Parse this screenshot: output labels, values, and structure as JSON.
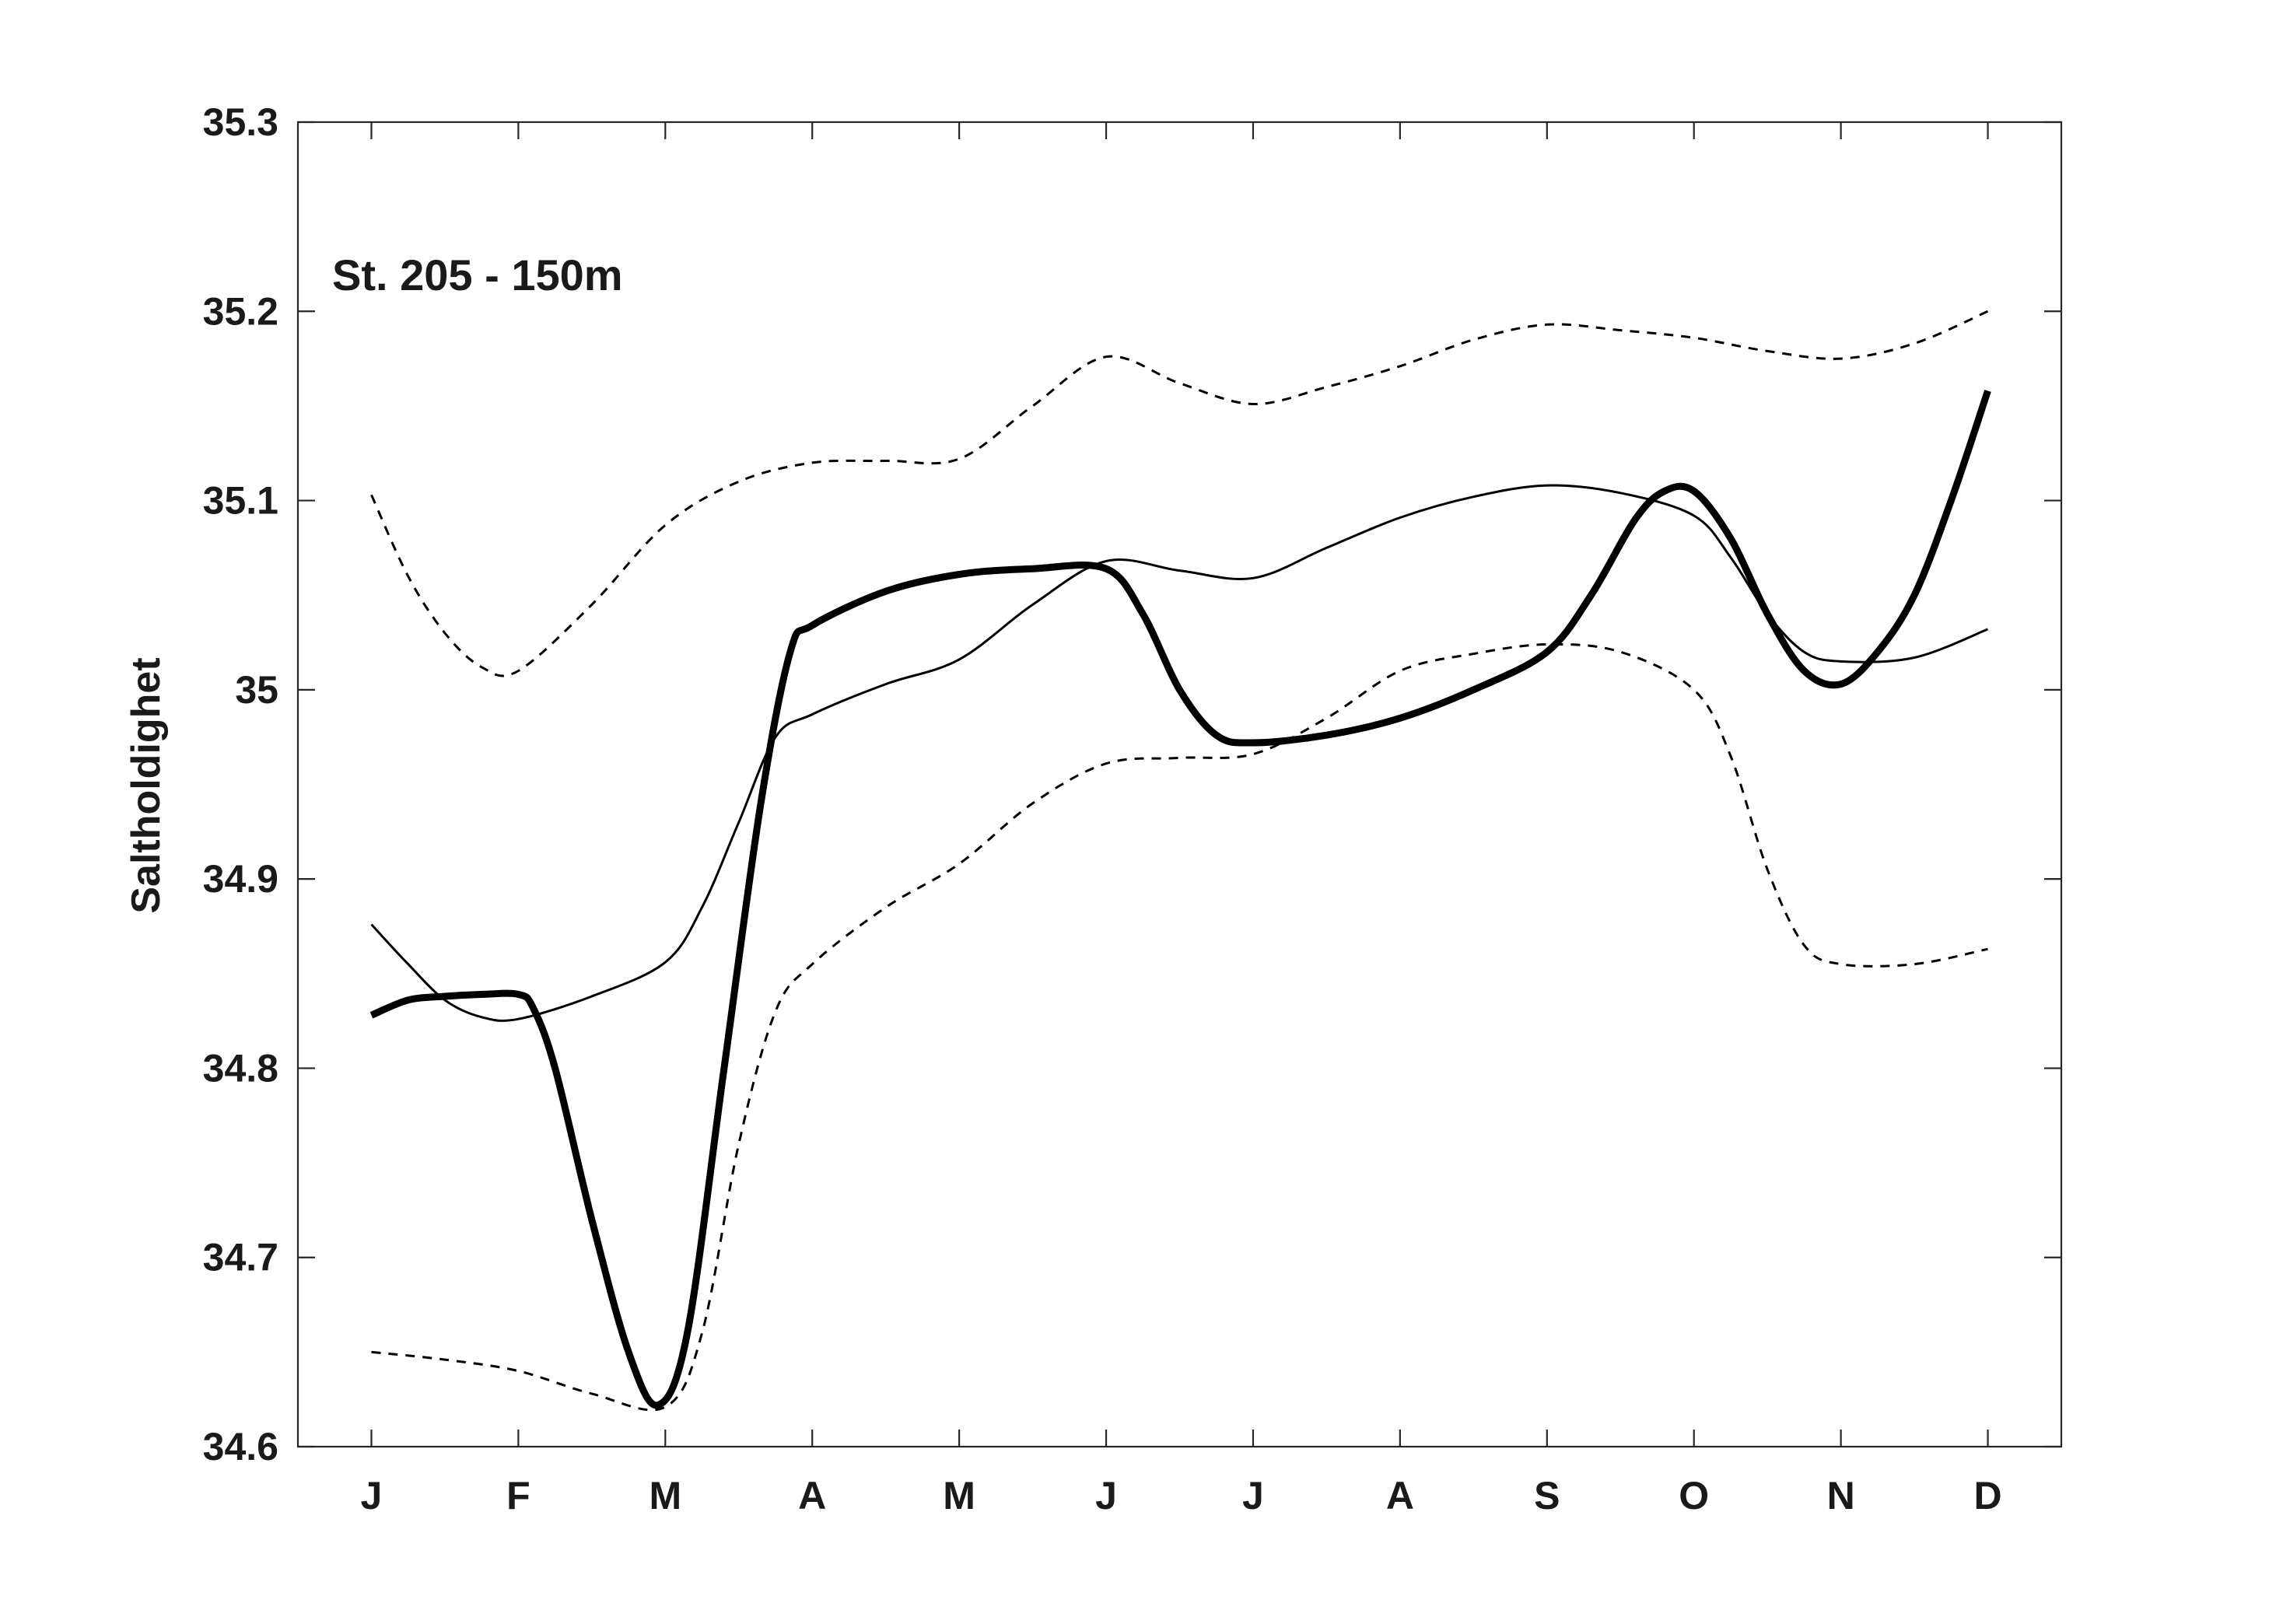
{
  "chart_data": {
    "type": "line",
    "title": "",
    "annotation": "St. 205 - 150m",
    "xlabel": "",
    "ylabel": "Saltholdighet",
    "categories": [
      "J",
      "F",
      "M",
      "A",
      "M",
      "J",
      "J",
      "A",
      "S",
      "O",
      "N",
      "D"
    ],
    "yticks": [
      "34.6",
      "34.7",
      "34.8",
      "34.9",
      "35",
      "35.1",
      "35.2",
      "35.3"
    ],
    "ylim": [
      34.6,
      35.3
    ],
    "xlim": [
      0.5,
      12.5
    ],
    "grid": false,
    "legend": "none",
    "series": [
      {
        "style": "thick-solid",
        "points": [
          [
            1,
            34.828
          ],
          [
            1.25,
            34.836
          ],
          [
            1.5,
            34.838
          ],
          [
            1.75,
            34.839
          ],
          [
            2,
            34.839
          ],
          [
            2.1,
            34.832
          ],
          [
            2.25,
            34.8
          ],
          [
            2.5,
            34.72
          ],
          [
            2.75,
            34.65
          ],
          [
            2.95,
            34.622
          ],
          [
            3.15,
            34.66
          ],
          [
            3.4,
            34.8
          ],
          [
            3.65,
            34.94
          ],
          [
            3.85,
            35.02
          ],
          [
            4,
            35.034
          ],
          [
            4.5,
            35.052
          ],
          [
            5,
            35.061
          ],
          [
            5.5,
            35.064
          ],
          [
            6,
            35.064
          ],
          [
            6.25,
            35.04
          ],
          [
            6.5,
            35.0
          ],
          [
            6.75,
            34.976
          ],
          [
            7,
            34.972
          ],
          [
            7.5,
            34.976
          ],
          [
            8,
            34.985
          ],
          [
            8.5,
            35.0
          ],
          [
            9,
            35.02
          ],
          [
            9.3,
            35.05
          ],
          [
            9.6,
            35.09
          ],
          [
            9.8,
            35.105
          ],
          [
            10,
            35.105
          ],
          [
            10.25,
            35.08
          ],
          [
            10.5,
            35.04
          ],
          [
            10.75,
            35.01
          ],
          [
            11,
            35.003
          ],
          [
            11.25,
            35.02
          ],
          [
            11.5,
            35.05
          ],
          [
            11.75,
            35.1
          ],
          [
            12,
            35.158
          ]
        ]
      },
      {
        "style": "thin-solid",
        "points": [
          [
            1,
            34.876
          ],
          [
            1.25,
            34.855
          ],
          [
            1.5,
            34.836
          ],
          [
            1.75,
            34.827
          ],
          [
            2,
            34.826
          ],
          [
            2.5,
            34.838
          ],
          [
            3,
            34.856
          ],
          [
            3.25,
            34.885
          ],
          [
            3.5,
            34.93
          ],
          [
            3.75,
            34.975
          ],
          [
            4,
            34.987
          ],
          [
            4.5,
            35.003
          ],
          [
            5,
            35.016
          ],
          [
            5.5,
            35.045
          ],
          [
            6,
            35.068
          ],
          [
            6.5,
            35.063
          ],
          [
            7,
            35.059
          ],
          [
            7.5,
            35.075
          ],
          [
            8,
            35.091
          ],
          [
            8.5,
            35.102
          ],
          [
            9,
            35.108
          ],
          [
            9.5,
            35.104
          ],
          [
            10,
            35.092
          ],
          [
            10.25,
            35.07
          ],
          [
            10.5,
            35.04
          ],
          [
            10.75,
            35.02
          ],
          [
            11,
            35.015
          ],
          [
            11.5,
            35.017
          ],
          [
            12,
            35.032
          ]
        ]
      },
      {
        "style": "dashed",
        "points": [
          [
            1,
            35.103
          ],
          [
            1.25,
            35.06
          ],
          [
            1.5,
            35.03
          ],
          [
            1.75,
            35.012
          ],
          [
            2,
            35.01
          ],
          [
            2.5,
            35.045
          ],
          [
            3,
            35.087
          ],
          [
            3.5,
            35.11
          ],
          [
            4,
            35.12
          ],
          [
            4.5,
            35.121
          ],
          [
            5,
            35.122
          ],
          [
            5.5,
            35.15
          ],
          [
            6,
            35.176
          ],
          [
            6.5,
            35.162
          ],
          [
            7,
            35.151
          ],
          [
            7.5,
            35.16
          ],
          [
            8,
            35.171
          ],
          [
            8.5,
            35.185
          ],
          [
            9,
            35.193
          ],
          [
            9.5,
            35.19
          ],
          [
            10,
            35.186
          ],
          [
            10.5,
            35.179
          ],
          [
            11,
            35.175
          ],
          [
            11.5,
            35.183
          ],
          [
            12,
            35.2
          ]
        ]
      },
      {
        "style": "dashed",
        "points": [
          [
            1,
            34.65
          ],
          [
            1.5,
            34.646
          ],
          [
            2,
            34.64
          ],
          [
            2.5,
            34.628
          ],
          [
            3,
            34.621
          ],
          [
            3.25,
            34.66
          ],
          [
            3.5,
            34.76
          ],
          [
            3.75,
            34.83
          ],
          [
            4,
            34.855
          ],
          [
            4.5,
            34.885
          ],
          [
            5,
            34.908
          ],
          [
            5.5,
            34.94
          ],
          [
            6,
            34.961
          ],
          [
            6.5,
            34.964
          ],
          [
            7,
            34.966
          ],
          [
            7.5,
            34.985
          ],
          [
            8,
            35.01
          ],
          [
            8.5,
            35.019
          ],
          [
            9,
            35.024
          ],
          [
            9.5,
            35.02
          ],
          [
            10,
            35.0
          ],
          [
            10.25,
            34.965
          ],
          [
            10.5,
            34.905
          ],
          [
            10.75,
            34.865
          ],
          [
            11,
            34.855
          ],
          [
            11.5,
            34.855
          ],
          [
            12,
            34.863
          ]
        ]
      }
    ]
  }
}
